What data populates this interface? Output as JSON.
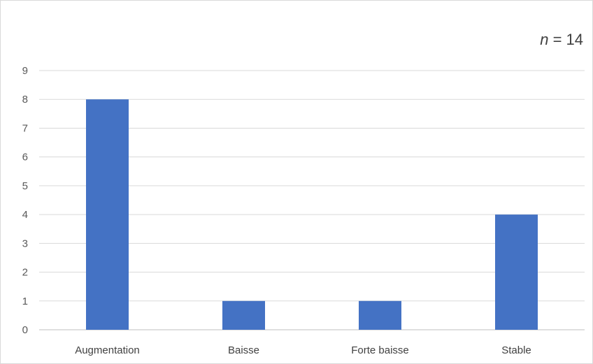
{
  "chart_data": {
    "type": "bar",
    "categories": [
      "Augmentation",
      "Baisse",
      "Forte baisse",
      "Stable"
    ],
    "values": [
      8,
      1,
      1,
      4
    ],
    "title": "",
    "xlabel": "",
    "ylabel": "",
    "ylim": [
      0,
      9
    ],
    "yticks": [
      0,
      1,
      2,
      3,
      4,
      5,
      6,
      7,
      8,
      9
    ],
    "grid": true,
    "legend": "none",
    "bar_color": "#4472C4",
    "annotation": {
      "variable": "n",
      "text": " = 14"
    }
  }
}
